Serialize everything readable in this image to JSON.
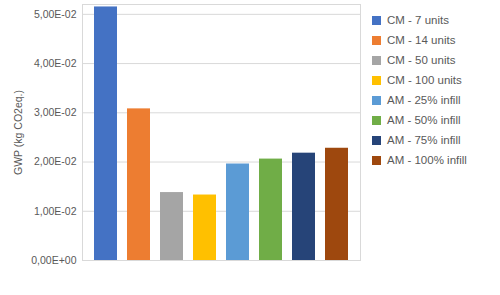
{
  "chart_data": {
    "type": "bar",
    "categories": [
      "CM - 7 units",
      "CM - 14 units",
      "CM - 50 units",
      "CM - 100 units",
      "AM - 25% infill",
      "AM - 50% infill",
      "AM - 75% infill",
      "AM - 100% infill"
    ],
    "values": [
      0.0515,
      0.0308,
      0.0138,
      0.0133,
      0.0196,
      0.0206,
      0.0218,
      0.0228
    ],
    "colors": [
      "#4472c4",
      "#ed7d31",
      "#a5a5a5",
      "#ffc000",
      "#5b9bd5",
      "#70ad47",
      "#264478",
      "#9e480e"
    ],
    "y_label": "GWP (kg CO2eq.)",
    "ylim": [
      0,
      0.052
    ],
    "yticks": [
      {
        "value": 0,
        "label": "0,00E+00"
      },
      {
        "value": 0.01,
        "label": "1,00E-02"
      },
      {
        "value": 0.02,
        "label": "2,00E-02"
      },
      {
        "value": 0.03,
        "label": "3,00E-02"
      },
      {
        "value": 0.04,
        "label": "4,00E-02"
      },
      {
        "value": 0.05,
        "label": "5,00E-02"
      }
    ],
    "grid": true,
    "legend": "right",
    "tick_labels": "y"
  }
}
